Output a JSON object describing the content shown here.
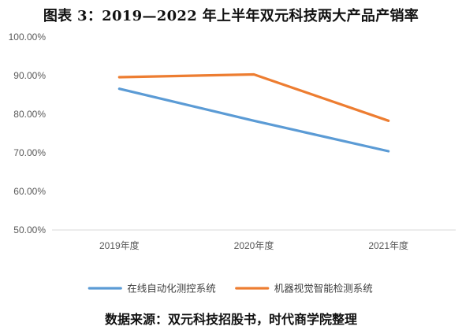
{
  "chart_data": {
    "type": "line",
    "title": "图表 3：2019—2022 年上半年双元科技两大产品产销率",
    "categories": [
      "2019年度",
      "2020年度",
      "2021年度"
    ],
    "ylim": [
      0.5,
      1.0
    ],
    "yticks": [
      "50.00%",
      "60.00%",
      "70.00%",
      "80.00%",
      "90.00%",
      "100.00%"
    ],
    "series": [
      {
        "name": "在线自动化测控系统",
        "values": [
          0.866,
          0.783,
          0.704
        ],
        "color": "#5b9bd5"
      },
      {
        "name": "机器视觉智能检测系统",
        "values": [
          0.896,
          0.903,
          0.783
        ],
        "color": "#ed7d31"
      }
    ],
    "grid": false,
    "legend": "bottom",
    "source": "数据来源：双元科技招股书，时代商学院整理"
  }
}
